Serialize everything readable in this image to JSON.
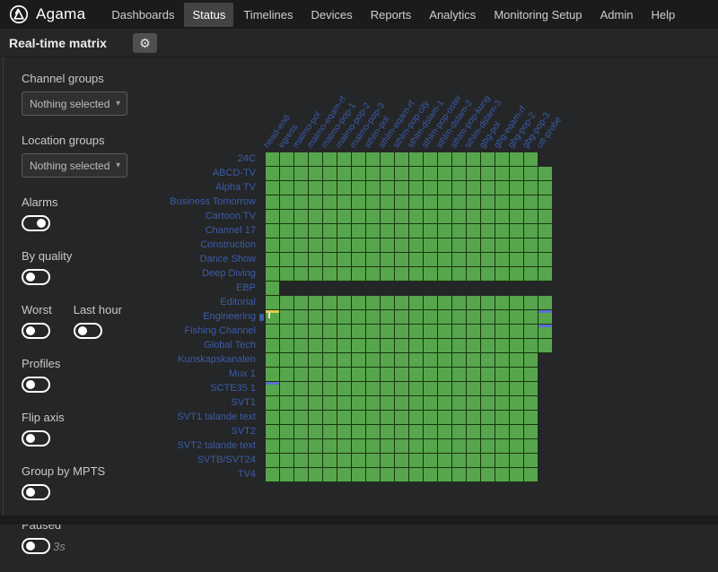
{
  "nav": {
    "brand": "Agama",
    "items": [
      {
        "label": "Dashboards",
        "active": false
      },
      {
        "label": "Status",
        "active": true
      },
      {
        "label": "Timelines",
        "active": false
      },
      {
        "label": "Devices",
        "active": false
      },
      {
        "label": "Reports",
        "active": false
      },
      {
        "label": "Analytics",
        "active": false
      },
      {
        "label": "Monitoring Setup",
        "active": false
      },
      {
        "label": "Admin",
        "active": false
      },
      {
        "label": "Help",
        "active": false
      }
    ]
  },
  "header": {
    "title": "Real-time matrix"
  },
  "icons": {
    "gear": "⚙",
    "caret": "▾"
  },
  "sidebar": {
    "selects": [
      {
        "label": "Channel groups",
        "value": "Nothing selected"
      },
      {
        "label": "Location groups",
        "value": "Nothing selected"
      }
    ],
    "toggle_rows": [
      [
        {
          "label": "Alarms",
          "on": true
        }
      ],
      [
        {
          "label": "By quality",
          "on": false
        }
      ],
      [
        {
          "label": "Worst",
          "on": false
        },
        {
          "label": "Last hour",
          "on": false
        }
      ],
      [
        {
          "label": "Profiles",
          "on": false
        }
      ],
      [
        {
          "label": "Flip axis",
          "on": false
        }
      ],
      [
        {
          "label": "Group by MPTS",
          "on": false
        }
      ],
      [
        {
          "label": "Paused",
          "on": false,
          "suffix": "3s"
        }
      ]
    ]
  },
  "matrix": {
    "status_colors": {
      "ok": "#57a64d",
      "warning": "#dfcb4d",
      "info": "#5e6fd2"
    },
    "label_color": "#3c5cab",
    "columns": [
      "head-end",
      "egress",
      "malmo-pol",
      "malmo-eqam-rf",
      "malmo-pop-1",
      "malmo-pop-2",
      "malmo-pop-3",
      "sthlm-pol",
      "sthlm-eqam-rf",
      "sthlm-pop-city",
      "sthlm-dslam-1",
      "sthlm-pop-oster",
      "sthlm-dslam-2",
      "sthlm-pop-kung",
      "sthlm-dslam-3",
      "gbg-pol",
      "gbg-eqam-rf",
      "gbg-pop-2",
      "gbg-pop-3",
      "ott-probe"
    ],
    "rows": [
      {
        "name": "24C",
        "cells": 19
      },
      {
        "name": "ABCD-TV",
        "cells": 20
      },
      {
        "name": "Alpha TV",
        "cells": 20
      },
      {
        "name": "Business Tomorrow",
        "cells": 20
      },
      {
        "name": "Cartoon TV",
        "cells": 20
      },
      {
        "name": "Channel 17",
        "cells": 20
      },
      {
        "name": "Construction",
        "cells": 20
      },
      {
        "name": "Dance Show",
        "cells": 20
      },
      {
        "name": "Deep Diving",
        "cells": 20
      },
      {
        "name": "EBP",
        "cells": 1
      },
      {
        "name": "Editorial",
        "cells": 20
      },
      {
        "name": "Engineering",
        "cells": 20,
        "alarm_icon": true,
        "marks": [
          {
            "col": 1,
            "type": "warning",
            "tick": true
          },
          {
            "col": 20,
            "type": "info"
          }
        ]
      },
      {
        "name": "Fishing Channel",
        "cells": 20,
        "marks": [
          {
            "col": 20,
            "type": "info"
          }
        ]
      },
      {
        "name": "Global Tech",
        "cells": 20
      },
      {
        "name": "Kunskapskanalen",
        "cells": 19
      },
      {
        "name": "Mux 1",
        "cells": 19
      },
      {
        "name": "SCTE35 1",
        "cells": 19,
        "marks": [
          {
            "col": 1,
            "type": "info"
          }
        ]
      },
      {
        "name": "SVT1",
        "cells": 19
      },
      {
        "name": "SVT1 talande text",
        "cells": 19
      },
      {
        "name": "SVT2",
        "cells": 19
      },
      {
        "name": "SVT2 talande text",
        "cells": 19
      },
      {
        "name": "SVTB/SVT24",
        "cells": 19
      },
      {
        "name": "TV4",
        "cells": 19
      }
    ]
  }
}
